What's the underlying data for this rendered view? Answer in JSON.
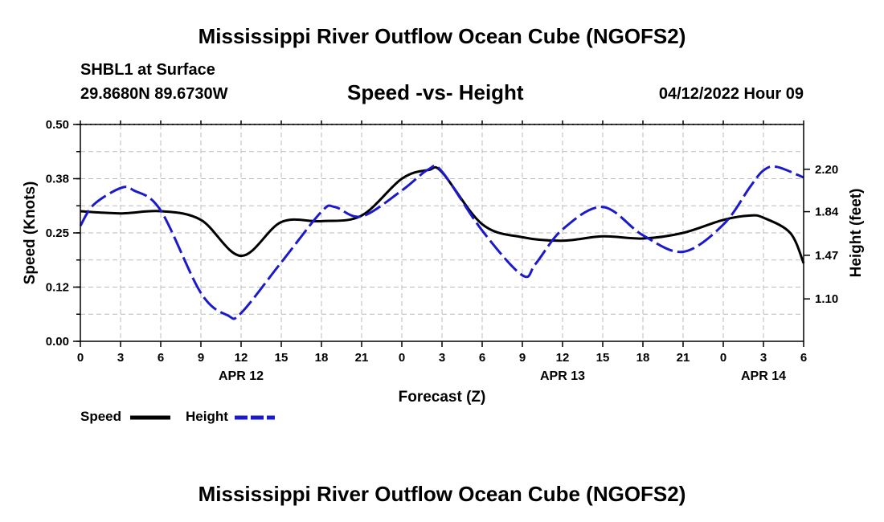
{
  "header": {
    "title": "Mississippi River Outflow Ocean Cube (NGOFS2)",
    "station": "SHBL1 at Surface",
    "coordinates": "29.8680N  89.6730W",
    "subtitle": "Speed -vs- Height",
    "datetime": "04/12/2022 Hour 09"
  },
  "footer": {
    "title": "Mississippi River Outflow Ocean Cube (NGOFS2)"
  },
  "legend": {
    "speed_label": "Speed",
    "height_label": "Height"
  },
  "colors": {
    "speed": "#000000",
    "height": "#1a1acc",
    "grid": "#bbbbbb"
  },
  "chart_data": {
    "type": "line",
    "xlabel": "Forecast (Z)",
    "ylabel_left": "Speed (Knots)",
    "ylabel_right": "Height (feet)",
    "x_range_hours": [
      0,
      54
    ],
    "x_tick_labels": [
      "0",
      "3",
      "6",
      "9",
      "12",
      "15",
      "18",
      "21",
      "0",
      "3",
      "6",
      "9",
      "12",
      "15",
      "18",
      "21",
      "0",
      "3",
      "6"
    ],
    "date_labels": [
      {
        "hour": 12,
        "label": "APR 12"
      },
      {
        "hour": 36,
        "label": "APR 13"
      },
      {
        "hour": 51,
        "label": "APR 14"
      }
    ],
    "ylim_left": [
      0,
      0.5
    ],
    "yticks_left": [
      {
        "value": 0.0,
        "label": "0.00"
      },
      {
        "value": 0.125,
        "label": "0.12"
      },
      {
        "value": 0.25,
        "label": "0.25"
      },
      {
        "value": 0.375,
        "label": "0.38"
      },
      {
        "value": 0.5,
        "label": "0.50"
      }
    ],
    "ylim_right": [
      0.74,
      2.58
    ],
    "yticks_right": [
      {
        "value": 1.1,
        "label": "1.10"
      },
      {
        "value": 1.47,
        "label": "1.47"
      },
      {
        "value": 1.84,
        "label": "1.84"
      },
      {
        "value": 2.2,
        "label": "2.20"
      }
    ],
    "series": [
      {
        "name": "Speed",
        "axis": "left",
        "style": "solid",
        "x": [
          0,
          3,
          6,
          9,
          12,
          15,
          18,
          21,
          24,
          26,
          27,
          30,
          33,
          36,
          39,
          42,
          45,
          48,
          50,
          51,
          53,
          54
        ],
        "values": [
          0.3,
          0.295,
          0.3,
          0.28,
          0.197,
          0.275,
          0.277,
          0.29,
          0.375,
          0.395,
          0.39,
          0.27,
          0.24,
          0.232,
          0.242,
          0.237,
          0.25,
          0.28,
          0.29,
          0.285,
          0.25,
          0.18
        ]
      },
      {
        "name": "Height",
        "axis": "right",
        "style": "dashed",
        "x": [
          0,
          1,
          3,
          4,
          6,
          9,
          11,
          12,
          15,
          18,
          19,
          21,
          24,
          26,
          27,
          30,
          33,
          34,
          36,
          39,
          42,
          45,
          48,
          50,
          51,
          52,
          54
        ],
        "values": [
          1.72,
          1.9,
          2.04,
          2.02,
          1.85,
          1.15,
          0.96,
          0.98,
          1.41,
          1.84,
          1.88,
          1.8,
          2.02,
          2.2,
          2.18,
          1.68,
          1.3,
          1.4,
          1.69,
          1.88,
          1.64,
          1.5,
          1.73,
          2.05,
          2.19,
          2.22,
          2.13
        ]
      }
    ]
  }
}
